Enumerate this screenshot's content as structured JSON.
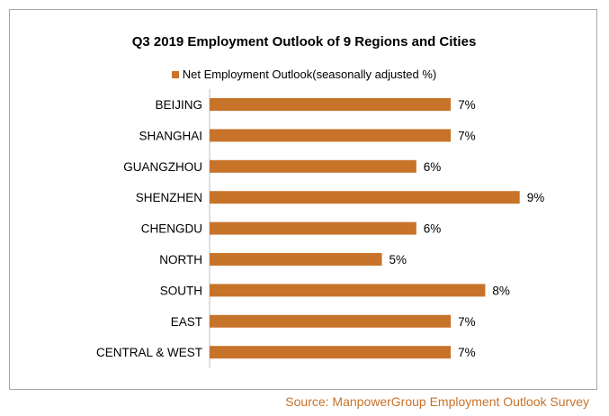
{
  "chart_data": {
    "type": "bar",
    "orientation": "horizontal",
    "title": "Q3 2019 Employment Outlook of 9 Regions and Cities",
    "legend": "top",
    "categories": [
      "BEIJING",
      "SHANGHAI",
      "GUANGZHOU",
      "SHENZHEN",
      "CHENGDU",
      "NORTH",
      "SOUTH",
      "EAST",
      "CENTRAL & WEST"
    ],
    "series": [
      {
        "name": "Net Employment Outlook(seasonally adjusted %)",
        "values": [
          7,
          7,
          6,
          9,
          6,
          5,
          8,
          7,
          7
        ]
      }
    ],
    "data_labels": [
      "7%",
      "7%",
      "6%",
      "9%",
      "6%",
      "5%",
      "8%",
      "7%",
      "7%"
    ],
    "xlim": [
      0,
      9
    ],
    "grid": false
  },
  "source": "Source: ManpowerGroup Employment Outlook Survey",
  "colors": {
    "bar": "#c8732a",
    "source_text": "#c8732a",
    "axis": "#bfbfbf"
  }
}
